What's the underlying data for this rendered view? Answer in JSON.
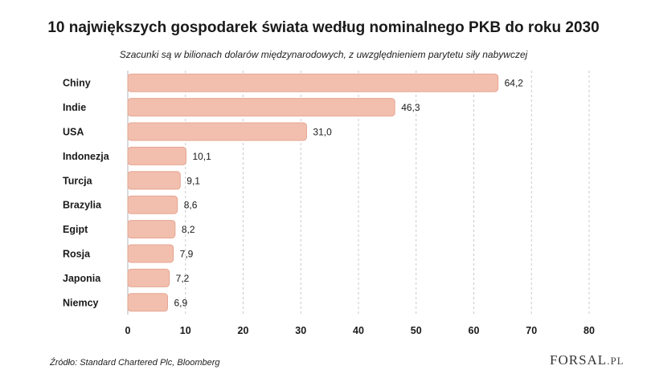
{
  "chart_data": {
    "type": "bar",
    "orientation": "horizontal",
    "title": "10 największych gospodarek świata według nominalnego PKB do roku 2030",
    "subtitle": "Szacunki są w bilionach dolarów międzynarodowych, z uwzględnieniem parytetu siły nabywczej",
    "categories": [
      "Chiny",
      "Indie",
      "USA",
      "Indonezja",
      "Turcja",
      "Brazylia",
      "Egipt",
      "Rosja",
      "Japonia",
      "Niemcy"
    ],
    "values": [
      64.2,
      46.3,
      31.0,
      10.1,
      9.1,
      8.6,
      8.2,
      7.9,
      7.2,
      6.9
    ],
    "value_labels": [
      "64,2",
      "46,3",
      "31,0",
      "10,1",
      "9,1",
      "8,6",
      "8,2",
      "7,9",
      "7,2",
      "6,9"
    ],
    "xticks": [
      "0",
      "10",
      "20",
      "30",
      "40",
      "50",
      "60",
      "70",
      "80"
    ],
    "xlim": [
      0,
      80
    ],
    "grid": "vertical dashed",
    "bar_color": "#f2bfae"
  },
  "footer": {
    "source": "Źródło: Standard Chartered Plc, Bloomberg",
    "logo_main": "FORSAL",
    "logo_suffix": ".PL"
  }
}
